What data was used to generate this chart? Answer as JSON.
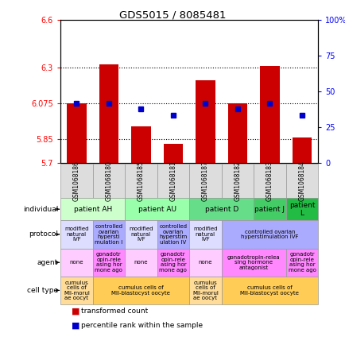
{
  "title": "GDS5015 / 8085481",
  "samples": [
    "GSM1068186",
    "GSM1068180",
    "GSM1068185",
    "GSM1068181",
    "GSM1068187",
    "GSM1068182",
    "GSM1068183",
    "GSM1068184"
  ],
  "bar_values": [
    6.075,
    6.32,
    5.93,
    5.82,
    6.22,
    6.075,
    6.31,
    5.86
  ],
  "dot_values": [
    6.075,
    6.075,
    6.04,
    6.0,
    6.075,
    6.04,
    6.075,
    6.0
  ],
  "bar_bottom": 5.7,
  "ylim_left": [
    5.7,
    6.6
  ],
  "ylim_right": [
    0,
    100
  ],
  "yticks_left": [
    5.7,
    5.85,
    6.075,
    6.3,
    6.6
  ],
  "ytick_labels_left": [
    "5.7",
    "5.85",
    "6.075",
    "6.3",
    "6.6"
  ],
  "yticks_right": [
    0,
    25,
    50,
    75,
    100
  ],
  "ytick_labels_right": [
    "0",
    "25",
    "50",
    "75",
    "100%"
  ],
  "hlines": [
    5.85,
    6.075,
    6.3
  ],
  "bar_color": "#cc0000",
  "dot_color": "#0000cc",
  "sample_box_color": "#dddddd",
  "individual_groups": [
    {
      "label": "patient AH",
      "cols": [
        0,
        1
      ],
      "color": "#ccffcc"
    },
    {
      "label": "patient AU",
      "cols": [
        2,
        3
      ],
      "color": "#99ffaa"
    },
    {
      "label": "patient D",
      "cols": [
        4,
        5
      ],
      "color": "#66dd88"
    },
    {
      "label": "patient J",
      "cols": [
        6
      ],
      "color": "#44cc66"
    },
    {
      "label": "patient\nL",
      "cols": [
        7
      ],
      "color": "#22bb44"
    }
  ],
  "protocol_groups": [
    {
      "label": "modified\nnatural\nIVF",
      "cols": [
        0
      ],
      "color": "#ddddff"
    },
    {
      "label": "controlled\novarian\nhypersti\nmulation I",
      "cols": [
        1
      ],
      "color": "#aaaaff"
    },
    {
      "label": "modified\nnatural\nIVF",
      "cols": [
        2
      ],
      "color": "#ddddff"
    },
    {
      "label": "controlled\novarian\nhyperstim\nulation IV",
      "cols": [
        3
      ],
      "color": "#aaaaff"
    },
    {
      "label": "modified\nnatural\nIVF",
      "cols": [
        4
      ],
      "color": "#ddddff"
    },
    {
      "label": "controlled ovarian\nhyperstimulation IVF",
      "cols": [
        5,
        6,
        7
      ],
      "color": "#aaaaff"
    }
  ],
  "agent_groups": [
    {
      "label": "none",
      "cols": [
        0
      ],
      "color": "#ffccff"
    },
    {
      "label": "gonadotr\nopin-rele\nasing hor\nmone ago",
      "cols": [
        1
      ],
      "color": "#ff88ff"
    },
    {
      "label": "none",
      "cols": [
        2
      ],
      "color": "#ffccff"
    },
    {
      "label": "gonadotr\nopin-rele\nasing hor\nmone ago",
      "cols": [
        3
      ],
      "color": "#ff88ff"
    },
    {
      "label": "none",
      "cols": [
        4
      ],
      "color": "#ffccff"
    },
    {
      "label": "gonadotropin-relea\nsing hormone\nantagonist",
      "cols": [
        5,
        6
      ],
      "color": "#ff88ff"
    },
    {
      "label": "gonadotr\nopin-rele\nasing hor\nmone ago",
      "cols": [
        7
      ],
      "color": "#ff88ff"
    }
  ],
  "celltype_groups": [
    {
      "label": "cumulus\ncells of\nMII-morul\nae oocyt",
      "cols": [
        0
      ],
      "color": "#ffdd99"
    },
    {
      "label": "cumulus cells of\nMII-blastocyst oocyte",
      "cols": [
        1,
        2,
        3
      ],
      "color": "#ffcc55"
    },
    {
      "label": "cumulus\ncells of\nMII-morul\nae oocyt",
      "cols": [
        4
      ],
      "color": "#ffdd99"
    },
    {
      "label": "cumulus cells of\nMII-blastocyst oocyte",
      "cols": [
        5,
        6,
        7
      ],
      "color": "#ffcc55"
    }
  ],
  "row_labels": [
    "individual",
    "protocol",
    "agent",
    "cell type"
  ],
  "legend_bar_color": "#cc0000",
  "legend_dot_color": "#0000cc"
}
